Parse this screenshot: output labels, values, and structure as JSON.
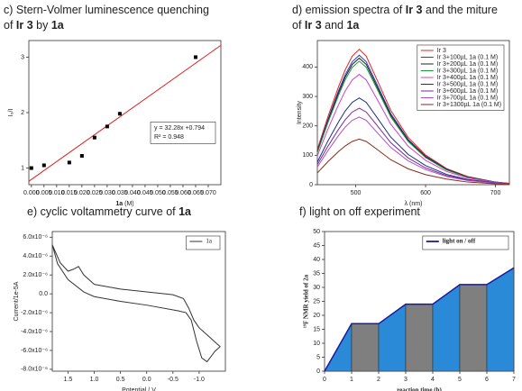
{
  "chart_data": [
    {
      "type": "scatter",
      "title": [
        [
          {
            "text": "c) Stern-Volmer luminescence quenching",
            "bold": false
          }
        ],
        [
          {
            "text": "of ",
            "bold": false
          },
          {
            "text": "Ir 3",
            "bold": true
          },
          {
            "text": " by ",
            "bold": false
          },
          {
            "text": "1a",
            "bold": true
          }
        ]
      ],
      "xlabel": [
        {
          "text": "1a",
          "bold": true
        },
        {
          "text": " (M)",
          "bold": false
        }
      ],
      "ylabel": "I₀/I",
      "x": [
        0,
        0.005,
        0.015,
        0.02,
        0.025,
        0.03,
        0.035,
        0.065
      ],
      "values": [
        1,
        1.05,
        1.1,
        1.22,
        1.55,
        1.75,
        1.98,
        3.0
      ],
      "color": "#000000",
      "fit": {
        "slope": 32.28,
        "intercept": 0.794,
        "color": "#e02020"
      },
      "annotations": [
        "y = 32.28x +0.794",
        "R² = 0.948"
      ],
      "xlim": [
        -0.001,
        0.075
      ],
      "xticks": [
        {
          "value": 0,
          "label": "0.000"
        },
        {
          "value": 0.005,
          "label": "0.005"
        },
        {
          "value": 0.01,
          "label": "0.010"
        },
        {
          "value": 0.015,
          "label": "0.015"
        },
        {
          "value": 0.02,
          "label": "0.020"
        },
        {
          "value": 0.025,
          "label": "0.025"
        },
        {
          "value": 0.03,
          "label": "0.030"
        },
        {
          "value": 0.035,
          "label": "0.035"
        },
        {
          "value": 0.04,
          "label": "0.040"
        },
        {
          "value": 0.045,
          "label": "0.045"
        },
        {
          "value": 0.05,
          "label": "0.050"
        },
        {
          "value": 0.055,
          "label": "0.055"
        },
        {
          "value": 0.06,
          "label": "0.060"
        },
        {
          "value": 0.065,
          "label": "0.065"
        },
        {
          "value": 0.07,
          "label": "0.070"
        }
      ],
      "ylim": [
        0.7,
        3.3
      ],
      "yticks": [
        1,
        2,
        3
      ]
    },
    {
      "type": "line",
      "title": [
        [
          {
            "text": "d) emission spectra of ",
            "bold": false
          },
          {
            "text": "Ir 3",
            "bold": true
          },
          {
            "text": " and the miture",
            "bold": false
          }
        ],
        [
          {
            "text": "of ",
            "bold": false
          },
          {
            "text": "Ir 3",
            "bold": true
          },
          {
            "text": " and ",
            "bold": false
          },
          {
            "text": "1a",
            "bold": true
          }
        ]
      ],
      "xlabel": [
        {
          "text": "λ (nm)",
          "bold": false
        }
      ],
      "ylabel": "Intensity",
      "x": [
        445,
        460,
        475,
        485,
        495,
        505,
        515,
        530,
        550,
        575,
        600,
        630,
        660,
        700,
        720
      ],
      "series": [
        {
          "name": "Ir 3",
          "color": "#e8201c",
          "values": [
            120,
            230,
            331,
            391,
            437,
            460,
            437,
            359,
            253,
            161,
            101,
            55,
            28,
            9,
            5
          ]
        },
        {
          "name": "Ir 3+100µL 1a (0.1 M)",
          "color": "#1f3fd0",
          "values": [
            114,
            220,
            317,
            374,
            418,
            440,
            418,
            343,
            242,
            154,
            97,
            53,
            26,
            9,
            4
          ]
        },
        {
          "name": "Ir 3+200µL 1a (0.1 M)",
          "color": "#222222",
          "values": [
            112,
            215,
            310,
            366,
            409,
            430,
            409,
            335,
            237,
            151,
            95,
            52,
            26,
            9,
            4
          ]
        },
        {
          "name": "Ir 3+300µL 1a (0.1 M)",
          "color": "#1c9a3a",
          "values": [
            109,
            210,
            302,
            357,
            399,
            420,
            399,
            328,
            231,
            147,
            92,
            50,
            25,
            8,
            4
          ]
        },
        {
          "name": "Ir 3+400µL 1a (0.1 M)",
          "color": "#d040d0",
          "values": [
            98,
            188,
            270,
            319,
            356,
            375,
            356,
            293,
            206,
            131,
            83,
            45,
            23,
            8,
            4
          ]
        },
        {
          "name": "Ir 3+500µL 1a (0.1 M)",
          "color": "#1a2a7a",
          "values": [
            77,
            148,
            212,
            251,
            280,
            295,
            280,
            230,
            162,
            103,
            65,
            35,
            18,
            6,
            3
          ]
        },
        {
          "name": "Ir 3+600µL 1a (0.1 M)",
          "color": "#7a2a9a",
          "values": [
            68,
            130,
            187,
            221,
            247,
            260,
            247,
            203,
            143,
            91,
            57,
            31,
            16,
            5,
            3
          ]
        },
        {
          "name": "Ir 3+700µL 1a (0.1 M)",
          "color": "#b050c0",
          "values": [
            60,
            115,
            166,
            196,
            219,
            230,
            219,
            179,
            127,
            81,
            51,
            28,
            14,
            5,
            2
          ]
        },
        {
          "name": "Ir 3+1300µL 1a (0.1 M)",
          "color": "#8a2a1a",
          "values": [
            40,
            78,
            112,
            132,
            147,
            155,
            147,
            121,
            85,
            54,
            34,
            19,
            9,
            3,
            2
          ]
        }
      ],
      "legend": "upper right",
      "xlim": [
        445,
        720
      ],
      "xticks": [
        500,
        600,
        700
      ],
      "ylim": [
        0,
        490
      ],
      "yticks": [
        0,
        100,
        200,
        300,
        400
      ]
    },
    {
      "type": "line",
      "title": [
        [
          {
            "text": "e) cyclic voltammetry curve of ",
            "bold": false
          },
          {
            "text": "1a",
            "bold": true
          }
        ]
      ],
      "xlabel": [
        {
          "text": "Potential / V",
          "bold": false
        }
      ],
      "ylabel": "Current/1e-5A",
      "x": [
        1.8,
        1.65,
        1.5,
        1.4,
        1.3,
        1.2,
        1.0,
        0.5,
        0.0,
        -0.5,
        -0.7,
        -0.8,
        -0.9,
        -1.0,
        -1.2,
        -1.4,
        -1.3,
        -1.15,
        -1.05,
        -0.95,
        -0.85,
        -0.75,
        -0.6,
        0.0,
        0.5,
        1.0,
        1.2,
        1.5,
        1.7,
        1.8
      ],
      "series": [
        {
          "name": "1a",
          "color": "#333333",
          "values": [
            5.2e-06,
            3.3e-06,
            2.4e-06,
            2.6e-06,
            2.9e-06,
            2e-06,
            1e-06,
            5e-07,
            2e-07,
            -1e-07,
            -5e-07,
            -1.5e-06,
            -2.8e-06,
            -3.6e-06,
            -4.6e-06,
            -5.6e-06,
            -6.1e-06,
            -7.2e-06,
            -6.8e-06,
            -5e-06,
            -2.8e-06,
            -2e-06,
            -1.8e-06,
            -1.2e-06,
            -8e-07,
            -3e-07,
            2e-07,
            1.5e-06,
            3.2e-06,
            5.2e-06
          ]
        }
      ],
      "legend": "upper right",
      "xlim": [
        1.8,
        -1.5
      ],
      "xticks": [
        1.5,
        {
          "value": 1,
          "label": "1.0"
        },
        0.5,
        {
          "value": 0,
          "label": "0.0"
        },
        -0.5,
        {
          "value": -1,
          "label": "-1.0"
        }
      ],
      "ylim": [
        -8.2e-06,
        6.6e-06
      ],
      "yticks": [
        {
          "value": 6e-06,
          "label": "6.0x10⁻⁶"
        },
        {
          "value": 4e-06,
          "label": "4.0x10⁻⁶"
        },
        {
          "value": 2e-06,
          "label": "2.0x10⁻⁶"
        },
        {
          "value": 0,
          "label": "0.0"
        },
        {
          "value": -2e-06,
          "label": "-2.0x10⁻⁶"
        },
        {
          "value": -4e-06,
          "label": "-4.0x10⁻⁶"
        },
        {
          "value": -6e-06,
          "label": "-6.0x10⁻⁶"
        },
        {
          "value": -8e-06,
          "label": "-8.0x10⁻⁶"
        }
      ]
    },
    {
      "type": "area",
      "title": [
        [
          {
            "text": "f) light on off experiment",
            "bold": false
          }
        ]
      ],
      "xlabel": [
        {
          "text": "reaction time (h)",
          "bold": true
        }
      ],
      "ylabel": "¹⁹F NMR yield of 2a",
      "x": [
        0,
        1,
        2,
        3,
        4,
        5,
        6,
        7
      ],
      "series": [
        {
          "name": "light on / off",
          "color": "#1a1aa0",
          "values": [
            0,
            17,
            17,
            24,
            24,
            31,
            31,
            37
          ]
        }
      ],
      "fill_on": "#2a8ad8",
      "fill_off": "#7f7f7f",
      "legend": "upper right",
      "xlim": [
        0,
        7
      ],
      "xticks": [
        0,
        1,
        2,
        3,
        4,
        5,
        6,
        7
      ],
      "ylim": [
        0,
        50
      ],
      "yticks": [
        0,
        5,
        10,
        15,
        20,
        25,
        30,
        35,
        40,
        45,
        50
      ]
    }
  ]
}
